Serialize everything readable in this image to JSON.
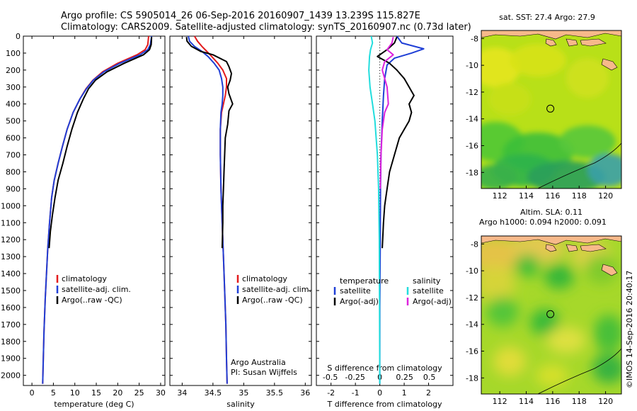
{
  "header": {
    "line1": "Argo profile: CS 5905014_26 06-Sep-2016 20160907_1439 13.239S 115.827E",
    "line2": "Climatology: CARS2009. Satellite-adjusted climatology: synTS_20160907.nc (0.73d later)"
  },
  "colors": {
    "climatology": "#e31a1c",
    "satellite": "#1f3fd6",
    "argo": "#000000",
    "sal_satellite": "#22dddd",
    "sal_argo": "#dd22dd",
    "land": "#f7b98a"
  },
  "chart_data": [
    {
      "type": "line",
      "xlabel": "temperature (deg C)",
      "ylabel": "",
      "xlim": [
        -2,
        31
      ],
      "ylim": [
        2060,
        0
      ],
      "xticks": [
        "0",
        "5",
        "10",
        "15",
        "20",
        "25",
        "30"
      ],
      "yticks": [
        "0",
        "100",
        "200",
        "300",
        "400",
        "500",
        "600",
        "700",
        "800",
        "900",
        "1000",
        "1100",
        "1200",
        "1300",
        "1400",
        "1500",
        "1600",
        "1700",
        "1800",
        "1900",
        "2000"
      ],
      "legend": [
        "climatology",
        "satellite-adj. clim.",
        "Argo(..raw -QC)"
      ],
      "series": [
        {
          "name": "climatology",
          "x": [
            27.2,
            27.0,
            26.4,
            24.5,
            20.0,
            16.5,
            14.2,
            12.6,
            11.2,
            9.6,
            8.2,
            7.1,
            6.1,
            5.2,
            4.6,
            4.1,
            3.7,
            3.4,
            3.1,
            2.8,
            2.6,
            2.5
          ],
          "y": [
            0,
            50,
            80,
            110,
            160,
            210,
            260,
            310,
            370,
            450,
            550,
            650,
            750,
            850,
            950,
            1100,
            1250,
            1400,
            1550,
            1750,
            1950,
            2050
          ]
        },
        {
          "name": "satellite-adj. clim.",
          "x": [
            27.9,
            27.6,
            27.0,
            25.2,
            20.5,
            16.8,
            14.3,
            12.7,
            11.2,
            9.6,
            8.2,
            7.1,
            6.1,
            5.2,
            4.6,
            4.1,
            3.7,
            3.4,
            3.1,
            2.8,
            2.6,
            2.5
          ],
          "y": [
            0,
            50,
            80,
            110,
            160,
            210,
            260,
            310,
            370,
            450,
            550,
            650,
            750,
            850,
            950,
            1100,
            1250,
            1400,
            1550,
            1750,
            1950,
            2050
          ]
        },
        {
          "name": "Argo(..raw -QC)",
          "x": [
            27.9,
            27.8,
            27.4,
            26.0,
            21.5,
            17.5,
            14.8,
            13.2,
            12.0,
            10.6,
            9.3,
            8.2,
            7.2,
            6.1,
            5.4,
            4.8,
            4.3,
            4.0
          ],
          "y": [
            5,
            50,
            80,
            110,
            160,
            210,
            260,
            310,
            370,
            450,
            550,
            650,
            750,
            850,
            950,
            1050,
            1150,
            1250
          ]
        }
      ]
    },
    {
      "type": "line",
      "xlabel": "salinity",
      "xlim": [
        33.8,
        36.1
      ],
      "ylim": [
        2060,
        0
      ],
      "xticks": [
        "34",
        "34.5",
        "35",
        "35.5",
        "36"
      ],
      "legend": [
        "climatology",
        "satellite-adj. clim.",
        "Argo(..raw -QC)"
      ],
      "annotation": [
        "Argo Australia",
        "PI: Susan Wijffels"
      ],
      "series": [
        {
          "name": "climatology",
          "x": [
            34.2,
            34.25,
            34.32,
            34.4,
            34.48,
            34.58,
            34.66,
            34.72,
            34.72,
            34.7,
            34.67,
            34.64,
            34.62,
            34.62,
            34.63,
            34.65,
            34.67,
            34.69,
            34.71,
            34.72,
            34.73
          ],
          "y": [
            0,
            30,
            60,
            90,
            120,
            160,
            200,
            250,
            300,
            350,
            400,
            450,
            550,
            700,
            900,
            1100,
            1300,
            1500,
            1700,
            1900,
            2050
          ]
        },
        {
          "name": "satellite-adj. clim.",
          "x": [
            34.1,
            34.12,
            34.2,
            34.32,
            34.42,
            34.52,
            34.6,
            34.64,
            34.66,
            34.66,
            34.65,
            34.63,
            34.62,
            34.62,
            34.63,
            34.65,
            34.67,
            34.69,
            34.71,
            34.72,
            34.73
          ],
          "y": [
            0,
            30,
            60,
            90,
            120,
            160,
            200,
            250,
            300,
            350,
            400,
            450,
            550,
            700,
            900,
            1100,
            1300,
            1500,
            1700,
            1900,
            2050
          ]
        },
        {
          "name": "Argo(..raw -QC)",
          "x": [
            34.07,
            34.08,
            34.15,
            34.3,
            34.5,
            34.72,
            34.76,
            34.8,
            34.78,
            34.74,
            34.76,
            34.82,
            34.76,
            34.74,
            34.7,
            34.69,
            34.68,
            34.67,
            34.66,
            34.66,
            34.65
          ],
          "y": [
            5,
            30,
            60,
            90,
            110,
            150,
            180,
            220,
            260,
            300,
            340,
            400,
            440,
            520,
            600,
            700,
            800,
            900,
            1000,
            1100,
            1250
          ]
        }
      ]
    },
    {
      "type": "line",
      "xlabel": "T difference from climatology",
      "x2label": "S difference from climatology",
      "xlim": [
        -2.6,
        3.0
      ],
      "ylim": [
        2060,
        0
      ],
      "xticks": [
        "-2",
        "-1",
        "0",
        "1",
        "2"
      ],
      "x2ticks": [
        "-0.5",
        "-0.25",
        "0",
        "0.25",
        "0.5"
      ],
      "legend_titles": [
        "temperature",
        "salinity"
      ],
      "legend": [
        "satellite",
        "Argo(-adj)",
        "satellite",
        "Argo(-adj)"
      ],
      "series": [
        {
          "name": "satellite",
          "x": [
            0.7,
            0.9,
            1.8,
            1.3,
            0.6,
            0.3,
            0.2,
            0.15,
            0.1,
            0.05,
            0.03,
            0.02,
            0.0,
            0.0
          ],
          "y": [
            0,
            40,
            75,
            100,
            130,
            170,
            250,
            350,
            500,
            700,
            900,
            1200,
            1600,
            2050
          ]
        },
        {
          "name": "Argo(-adj)",
          "x": [
            0.7,
            0.6,
            0.3,
            -0.1,
            0.4,
            0.7,
            1.0,
            1.2,
            1.4,
            1.2,
            1.3,
            1.2,
            1.0,
            0.8,
            0.6,
            0.4,
            0.3,
            0.2,
            0.15,
            0.1
          ],
          "y": [
            5,
            40,
            80,
            120,
            160,
            200,
            250,
            300,
            350,
            400,
            450,
            500,
            550,
            600,
            700,
            800,
            900,
            1000,
            1100,
            1250
          ]
        },
        {
          "name": "satellite",
          "x": [
            -0.35,
            -0.3,
            -0.38,
            -0.42,
            -0.45,
            -0.4,
            -0.3,
            -0.2,
            -0.1,
            -0.05,
            -0.02,
            0.0
          ],
          "y": [
            0,
            40,
            80,
            120,
            200,
            300,
            400,
            500,
            700,
            900,
            1200,
            2050
          ]
        },
        {
          "name": "Argo(-adj)",
          "x": [
            0.55,
            0.5,
            0.3,
            0.55,
            0.2,
            0.1,
            0.3,
            0.35,
            0.2,
            0.1,
            0.05,
            0.02
          ],
          "y": [
            5,
            40,
            80,
            110,
            150,
            200,
            300,
            400,
            450,
            550,
            700,
            900
          ]
        }
      ]
    }
  ],
  "maps": [
    {
      "title": "sat. SST: 27.4  Argo: 27.9",
      "title2": "",
      "xticks": [
        "112",
        "114",
        "116",
        "118",
        "120"
      ],
      "yticks": [
        "-8",
        "-10",
        "-12",
        "-14",
        "-16",
        "-18"
      ]
    },
    {
      "title": "Altim. SLA: 0.11",
      "title2": "Argo h1000: 0.094 h2000: 0.091",
      "xticks": [
        "112",
        "114",
        "116",
        "118",
        "120"
      ],
      "yticks": [
        "-8",
        "-10",
        "-12",
        "-14",
        "-16",
        "-18"
      ]
    }
  ],
  "footer": {
    "stamp": "©IMOS 14-Sep-2016 20:40:17"
  }
}
